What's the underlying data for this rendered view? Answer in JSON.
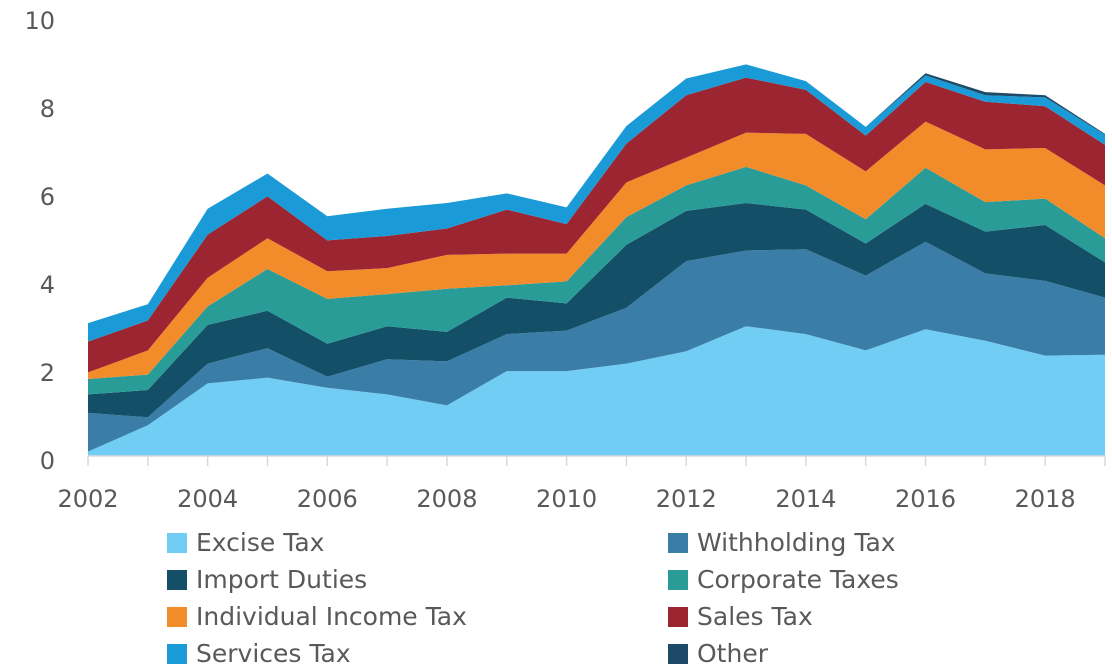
{
  "chart_data": {
    "type": "stacked_area",
    "x": [
      2002,
      2003,
      2004,
      2005,
      2006,
      2007,
      2008,
      2009,
      2010,
      2011,
      2012,
      2013,
      2014,
      2015,
      2016,
      2017,
      2018,
      2019
    ],
    "series": [
      {
        "name": "Excise Tax",
        "color": "#71cdf4",
        "values": [
          0.1,
          0.7,
          1.65,
          1.78,
          1.55,
          1.4,
          1.15,
          1.93,
          1.93,
          2.1,
          2.38,
          2.95,
          2.77,
          2.4,
          2.88,
          2.62,
          2.28,
          2.3
        ]
      },
      {
        "name": "Withholding Tax",
        "color": "#3a7ea8",
        "values": [
          0.88,
          0.18,
          0.45,
          0.67,
          0.25,
          0.8,
          1.0,
          0.84,
          0.92,
          1.27,
          2.05,
          1.72,
          1.93,
          1.7,
          1.99,
          1.53,
          1.7,
          1.3
        ]
      },
      {
        "name": "Import Duties",
        "color": "#134f67",
        "values": [
          0.42,
          0.62,
          0.88,
          0.85,
          0.75,
          0.75,
          0.67,
          0.83,
          0.62,
          1.43,
          1.14,
          1.08,
          0.9,
          0.73,
          0.86,
          0.95,
          1.27,
          0.8
        ]
      },
      {
        "name": "Corporate Taxes",
        "color": "#2a9c98",
        "values": [
          0.35,
          0.35,
          0.42,
          0.95,
          1.02,
          0.73,
          0.98,
          0.28,
          0.5,
          0.63,
          0.58,
          0.82,
          0.55,
          0.55,
          0.82,
          0.67,
          0.6,
          0.55
        ]
      },
      {
        "name": "Individual Income Tax",
        "color": "#f28b2a",
        "values": [
          0.15,
          0.55,
          0.65,
          0.7,
          0.63,
          0.59,
          0.77,
          0.72,
          0.63,
          0.79,
          0.63,
          0.78,
          1.17,
          1.09,
          1.05,
          1.2,
          1.15,
          1.2
        ]
      },
      {
        "name": "Sales Tax",
        "color": "#9b2531",
        "values": [
          0.7,
          0.68,
          0.98,
          0.95,
          0.7,
          0.73,
          0.6,
          1.0,
          0.67,
          0.88,
          1.42,
          1.25,
          1.0,
          0.81,
          0.9,
          1.08,
          0.95,
          0.92
        ]
      },
      {
        "name": "Services Tax",
        "color": "#1a9ad6",
        "values": [
          0.42,
          0.37,
          0.59,
          0.52,
          0.55,
          0.62,
          0.58,
          0.37,
          0.38,
          0.4,
          0.38,
          0.3,
          0.2,
          0.2,
          0.15,
          0.15,
          0.2,
          0.23
        ]
      },
      {
        "name": "Other",
        "color": "#1d4a66",
        "values": [
          0,
          0,
          0,
          0,
          0,
          0,
          0,
          0,
          0,
          0,
          0,
          0,
          0,
          0,
          0.05,
          0.07,
          0.05,
          0.02
        ]
      }
    ],
    "xlim": [
      2002,
      2019
    ],
    "xticks": [
      2002,
      2004,
      2006,
      2008,
      2010,
      2012,
      2014,
      2016,
      2018
    ],
    "ylim": [
      0,
      10
    ],
    "yticks": [
      0,
      2,
      4,
      6,
      8,
      10
    ],
    "grid": false
  }
}
